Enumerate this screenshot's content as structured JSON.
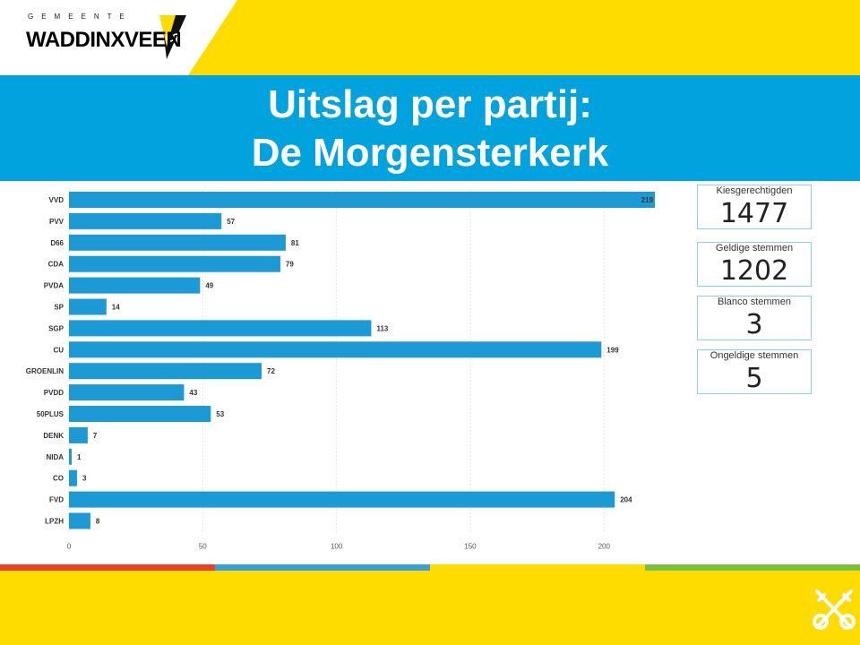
{
  "logo": {
    "municipality_label": "GEMEENTE",
    "name": "WADDINXVEEN"
  },
  "title": {
    "line1": "Uitslag per partij:",
    "line2": "De Morgensterkerk"
  },
  "stats": [
    {
      "label": "Kiesgerechtigden",
      "value": "1477"
    },
    {
      "label": "Geldige stemmen",
      "value": "1202"
    },
    {
      "label": "Blanco stemmen",
      "value": "3"
    },
    {
      "label": "Ongeldige stemmen",
      "value": "5"
    }
  ],
  "colors": {
    "banner": "#00a3dd",
    "bar": "#1b9ad6",
    "yellow": "#ffdc00",
    "stripe": [
      "#e8412c",
      "#3aa0dd",
      "#ffdc00",
      "#7ac143"
    ]
  },
  "chart_data": {
    "type": "bar",
    "orientation": "horizontal",
    "categories": [
      "VVD",
      "PVV",
      "D66",
      "CDA",
      "PVDA",
      "SP",
      "SGP",
      "CU",
      "GROENLIN",
      "PVDD",
      "50PLUS",
      "DENK",
      "NIDA",
      "CO",
      "FVD",
      "LPZH"
    ],
    "values": [
      219,
      57,
      81,
      79,
      49,
      14,
      113,
      199,
      72,
      43,
      53,
      7,
      1,
      3,
      204,
      8
    ],
    "xticks": [
      0,
      50,
      100,
      150,
      200
    ],
    "xlim": [
      0,
      222
    ],
    "grid": true,
    "data_labels": true
  }
}
